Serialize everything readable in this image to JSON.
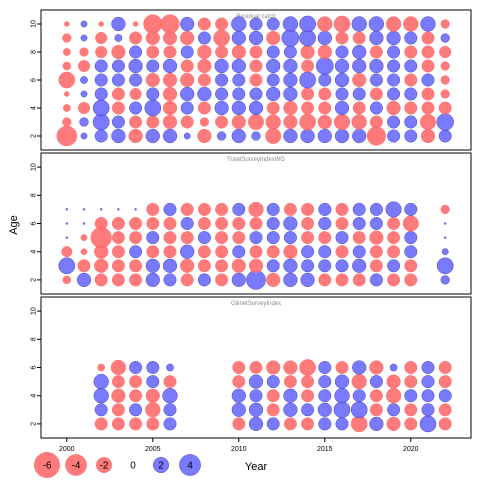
{
  "chart_data": {
    "type": "bubble",
    "x_label": "Year",
    "y_label": "Age",
    "x_ticks": [
      "2000",
      "2005",
      "2010",
      "2015",
      "2020"
    ],
    "y_ticks": [
      "2",
      "4",
      "6",
      "8",
      "10"
    ],
    "x_range": [
      1998.5,
      2023.5
    ],
    "y_range": [
      1,
      11
    ],
    "colors": {
      "negative": "#ff6b6b",
      "positive": "#6b6bff",
      "outline": "#3333aa"
    },
    "legend": [
      {
        "label": "-6",
        "value": -6
      },
      {
        "label": "-4",
        "value": -4
      },
      {
        "label": "-2",
        "value": -2
      },
      {
        "label": "0",
        "value": 0
      },
      {
        "label": "2",
        "value": 2
      },
      {
        "label": "4",
        "value": 4
      }
    ],
    "panels": [
      {
        "title": "Residual catch",
        "years": [
          2000,
          2001,
          2002,
          2003,
          2004,
          2005,
          2006,
          2007,
          2008,
          2009,
          2010,
          2011,
          2012,
          2013,
          2014,
          2015,
          2016,
          2017,
          2018,
          2019,
          2020,
          2021,
          2022
        ],
        "ages": [
          2,
          3,
          4,
          5,
          6,
          7,
          8,
          9,
          10
        ],
        "residuals": [
          [
            -3.5,
            0.2,
            1.2,
            1.5,
            -1.5,
            1.5,
            1.5,
            0.2,
            -1.5,
            0.5,
            1.5,
            0.5,
            -2,
            1.5,
            1.5,
            1.5,
            1.5,
            1.5,
            -3,
            1.2,
            1.2,
            -1.5,
            1.2
          ],
          [
            -0.5,
            0.5,
            2.2,
            1.2,
            -1.2,
            -1.2,
            -1.5,
            -1.2,
            -0.5,
            -1.2,
            -1.5,
            -2,
            -1.8,
            -1.5,
            -2.2,
            -1.5,
            -2,
            -1.8,
            -1.2,
            1.2,
            1.2,
            -2,
            2.4
          ],
          [
            -0.3,
            -1,
            2.2,
            -1.2,
            1.2,
            2.2,
            -1.5,
            1.2,
            -1.2,
            1.5,
            1.5,
            1.5,
            -1.2,
            -1.5,
            -1.2,
            -1.2,
            1.5,
            -1.2,
            1.2,
            -1.5,
            -1.2,
            -1.2,
            -1.2
          ],
          [
            -0.1,
            0.2,
            1.2,
            -1.2,
            -1,
            1.2,
            -1.5,
            1.5,
            1.5,
            1.2,
            1.2,
            1.2,
            1.5,
            1.5,
            -1.2,
            -1.2,
            1.2,
            1.2,
            -1.2,
            1.2,
            1.2,
            -1.2,
            -0.5
          ],
          [
            -2.2,
            0.3,
            1.2,
            1.2,
            1.2,
            -1.5,
            -1.5,
            -1.5,
            -1.2,
            1.2,
            1.2,
            -1.2,
            1.2,
            1.5,
            2.2,
            1.2,
            1.5,
            -1.5,
            1.2,
            1.2,
            -1.2,
            1.2,
            -0.5
          ],
          [
            -0.4,
            -1,
            1.2,
            1.2,
            1.5,
            1.2,
            1.5,
            -1.2,
            -1.5,
            1.5,
            1.5,
            -1.2,
            1.5,
            1.5,
            -1.2,
            2.5,
            1.5,
            1.5,
            1.5,
            1.2,
            1.2,
            -1.2,
            -0.5
          ],
          [
            -0.3,
            -0.5,
            -1,
            -1.5,
            1.2,
            -1.2,
            -1.2,
            1.2,
            -1.5,
            -1.2,
            -1.5,
            -1.2,
            1.2,
            1.2,
            -1.5,
            -1.5,
            1.2,
            1.5,
            -1.2,
            1.2,
            -1.2,
            -1.2,
            -1
          ],
          [
            -0.5,
            0.2,
            -1,
            0.3,
            -1.2,
            -1.5,
            -1.5,
            -1.5,
            1.2,
            -2.2,
            1.5,
            1.5,
            -1.5,
            2.5,
            2.2,
            1.5,
            -1.2,
            -1.2,
            1.5,
            1.5,
            1.2,
            -1.2,
            0.5
          ],
          [
            -0.1,
            0.2,
            -0.1,
            1.5,
            -0.1,
            -3,
            -3,
            1.5,
            -1.2,
            -1.2,
            1.8,
            1.2,
            1.2,
            1.8,
            2.2,
            -1.8,
            -2.2,
            1.8,
            1.8,
            -1.8,
            -1.8,
            1.8,
            -0.5
          ]
        ]
      },
      {
        "title": "TrawlSurveyIndexWG",
        "years": [
          2000,
          2001,
          2002,
          2003,
          2004,
          2005,
          2006,
          2007,
          2008,
          2009,
          2010,
          2011,
          2012,
          2013,
          2014,
          2015,
          2016,
          2017,
          2018,
          2019,
          2020,
          2022
        ],
        "ages": [
          2,
          3,
          4,
          5,
          6,
          7,
          8,
          9,
          10
        ],
        "residuals": [
          [
            -0.4,
            1.5,
            -1.2,
            -1.2,
            -1.2,
            1.5,
            1.2,
            -1.2,
            1.2,
            -1.2,
            1.5,
            3.2,
            -1.5,
            1.5,
            1.5,
            -1.2,
            -1.2,
            -1.2,
            1.2,
            -1.2,
            -1.2,
            0.5
          ],
          [
            2.2,
            -1.2,
            -1.5,
            -1.2,
            -1.2,
            1.5,
            1.5,
            -1.5,
            -1.2,
            -1.2,
            -1.5,
            -1.5,
            1.2,
            1.5,
            1.2,
            1.2,
            1.2,
            1.5,
            -1.2,
            1.2,
            -1.2,
            2.2
          ],
          [
            -0.8,
            -0.2,
            -1.5,
            -1.2,
            1.2,
            -1.2,
            -1.2,
            1.5,
            -1.2,
            -1.2,
            1.2,
            -1.2,
            -1.2,
            -1.5,
            1.2,
            1.2,
            -1.2,
            1.2,
            -1.2,
            -1.2,
            1.2,
            0.2
          ],
          [
            0,
            -0.2,
            -3.8,
            -1.2,
            -1.2,
            1.2,
            -1.2,
            -1.2,
            1.2,
            -1.2,
            -1.2,
            1.2,
            1.2,
            1.2,
            -1.2,
            -1.2,
            1.2,
            -1.2,
            -1.5,
            -1.2,
            1.2,
            0
          ],
          [
            0,
            0,
            -1.2,
            -1.2,
            -1.2,
            -1.2,
            -1.2,
            1.2,
            -1.2,
            -1.2,
            -1.2,
            -1.2,
            1.2,
            1.5,
            -1.2,
            1.2,
            -1.2,
            1.2,
            1.2,
            -1.2,
            -2,
            0
          ],
          [
            0,
            0,
            0,
            0,
            0,
            -1.2,
            1.2,
            -1.2,
            -1.2,
            -1.2,
            1.2,
            -1.8,
            1.2,
            -1.2,
            -1.2,
            1.2,
            -1.2,
            1.2,
            1.2,
            2,
            1.2,
            -0.5
          ]
        ]
      },
      {
        "title": "GillnetSurveyIndex",
        "years": [
          2002,
          2003,
          2004,
          2005,
          2006,
          2010,
          2011,
          2012,
          2013,
          2014,
          2015,
          2016,
          2017,
          2018,
          2019,
          2020,
          2021,
          2022
        ],
        "ages": [
          2,
          3,
          4,
          5,
          6
        ],
        "residuals": [
          [
            -1.2,
            -1.2,
            -1.2,
            -1.2,
            1.2,
            -1.2,
            1.5,
            1.2,
            -1.2,
            -1.2,
            1.2,
            1.2,
            -2.2,
            1.5,
            -1.5,
            -1.2,
            2.2,
            -1.2
          ],
          [
            1.2,
            -1.2,
            1.2,
            -1.8,
            1.2,
            1.5,
            1.5,
            -1.2,
            1.5,
            1.2,
            1.5,
            2.2,
            2.2,
            -1.2,
            1.2,
            -1.2,
            1.2,
            -1.2
          ],
          [
            1.8,
            -1.5,
            -1.2,
            -1.5,
            1.8,
            1.5,
            1.2,
            -1.2,
            1.5,
            -1.2,
            1.2,
            1.8,
            1.2,
            -1.2,
            -1.8,
            1.2,
            1.2,
            1.2
          ],
          [
            1.8,
            -1.2,
            -1.2,
            1.2,
            -1.2,
            -1.2,
            1.5,
            1.2,
            -1.2,
            -1.2,
            1.2,
            1.5,
            -1.8,
            1.2,
            -1.5,
            -1.2,
            1.2,
            -1.2
          ],
          [
            -0.3,
            -1.8,
            1.2,
            1.2,
            0.3,
            -1.2,
            -1.2,
            -1.5,
            -1.5,
            -2.2,
            1.2,
            -1.2,
            1.5,
            -1.5,
            0.3,
            -1.2,
            1.2,
            -1.2
          ]
        ]
      }
    ]
  }
}
